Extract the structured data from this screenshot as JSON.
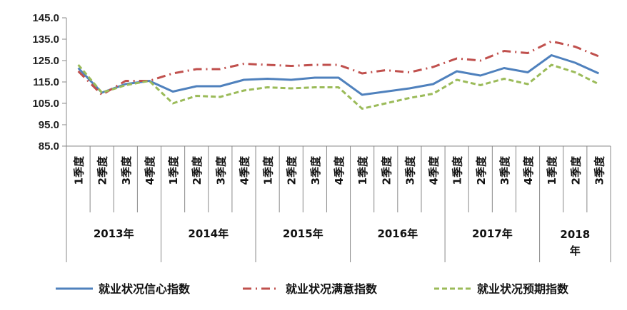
{
  "chart_data": {
    "type": "line",
    "ylim": [
      85.0,
      145.0
    ],
    "yticks": [
      "85.0",
      "95.0",
      "105.0",
      "115.0",
      "125.0",
      "135.0",
      "145.0"
    ],
    "grid": false,
    "legend_position": "bottom",
    "categories": [
      "1季度",
      "2季度",
      "3季度",
      "4季度",
      "1季度",
      "2季度",
      "3季度",
      "4季度",
      "1季度",
      "2季度",
      "3季度",
      "4季度",
      "1季度",
      "2季度",
      "3季度",
      "4季度",
      "1季度",
      "2季度",
      "3季度",
      "4季度",
      "1季度",
      "2季度",
      "3季度"
    ],
    "years": [
      {
        "label": "2013年",
        "count": 4
      },
      {
        "label": "2014年",
        "count": 4
      },
      {
        "label": "2015年",
        "count": 4
      },
      {
        "label": "2016年",
        "count": 4
      },
      {
        "label": "2017年",
        "count": 4
      },
      {
        "label": "2018年",
        "count": 3
      }
    ],
    "series": [
      {
        "name": "就业状况信心指数",
        "color": "#4F81BD",
        "dash": "solid",
        "values": [
          121.5,
          110.0,
          114.0,
          115.5,
          110.5,
          113.0,
          113.0,
          116.0,
          116.5,
          116.0,
          117.0,
          117.0,
          109.0,
          110.5,
          112.0,
          114.0,
          120.0,
          118.0,
          121.5,
          119.5,
          127.5,
          124.0,
          119.0
        ]
      },
      {
        "name": "就业状况满意指数",
        "color": "#C0504D",
        "dash": "dashdot",
        "values": [
          120.0,
          109.0,
          115.5,
          115.5,
          119.0,
          121.0,
          121.0,
          123.5,
          123.0,
          122.5,
          123.0,
          123.0,
          119.0,
          120.5,
          119.5,
          122.0,
          126.0,
          125.0,
          129.5,
          128.5,
          134.0,
          131.5,
          127.0
        ]
      },
      {
        "name": "就业状况预期指数",
        "color": "#9BBB59",
        "dash": "dashed",
        "values": [
          123.0,
          110.0,
          113.5,
          115.5,
          105.0,
          108.5,
          108.0,
          111.0,
          112.5,
          112.0,
          112.5,
          112.5,
          102.5,
          105.0,
          107.5,
          109.5,
          116.0,
          113.5,
          116.5,
          114.0,
          123.0,
          119.5,
          114.0
        ]
      }
    ]
  }
}
